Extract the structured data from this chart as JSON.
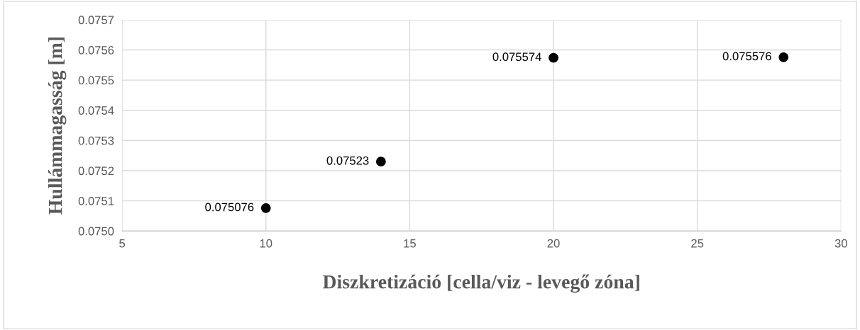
{
  "chart_data": {
    "type": "scatter",
    "xlabel": "Diszkretizáció [cella/viz - levegő zóna]",
    "ylabel": "Hullámmagasság [m]",
    "x": [
      10,
      14,
      20,
      28
    ],
    "series": [
      {
        "color": "#000000",
        "values": [
          0.075076,
          0.07523,
          0.075574,
          0.075576
        ]
      }
    ],
    "xlim": [
      5,
      30
    ],
    "xticks": [
      5,
      10,
      15,
      20,
      25,
      30
    ],
    "ylim": [
      0.075,
      0.0757
    ],
    "yticks": [
      {
        "value": 0.075,
        "label": "0.0750"
      },
      {
        "value": 0.0751,
        "label": "0.0751"
      },
      {
        "value": 0.0752,
        "label": "0.0752"
      },
      {
        "value": 0.0753,
        "label": "0.0753"
      },
      {
        "value": 0.0754,
        "label": "0.0754"
      },
      {
        "value": 0.0755,
        "label": "0.0755"
      },
      {
        "value": 0.0756,
        "label": "0.0756"
      },
      {
        "value": 0.0757,
        "label": "0.0757"
      }
    ],
    "grid": true,
    "marker": "circle",
    "data_labels": true
  }
}
